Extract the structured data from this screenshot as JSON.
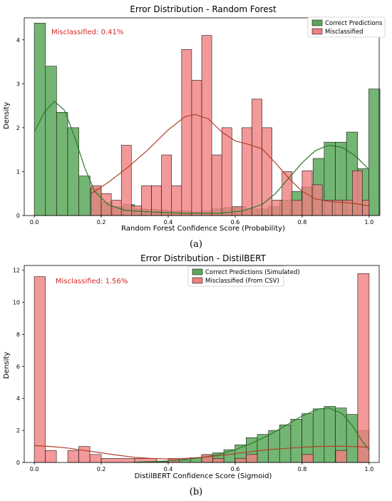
{
  "chart_data": [
    {
      "type": "histogram",
      "title": "Error Distribution - Random Forest",
      "xlabel": "Random Forest Confidence Score (Probability)",
      "ylabel": "Density",
      "xlim": [
        -0.03,
        1.03
      ],
      "ylim": [
        0,
        4.5
      ],
      "xticks": [
        "0.0",
        "0.2",
        "0.4",
        "0.6",
        "0.8",
        "1.0"
      ],
      "xtick_values": [
        0,
        0.2,
        0.4,
        0.6,
        0.8,
        1.0
      ],
      "yticks": [
        "0",
        "1",
        "2",
        "3",
        "4"
      ],
      "ytick_values": [
        0,
        1,
        2,
        3,
        4
      ],
      "legend_position": "top-right",
      "annotation": "Misclassified: 0.41%",
      "caption": "(a)",
      "series": [
        {
          "name": "Correct Predictions",
          "color": "#5aa85a",
          "edge": "#1a1a1a",
          "bin_width": 0.0333,
          "bins_start": 0.0,
          "values": [
            4.38,
            3.4,
            2.35,
            2.0,
            0.9,
            0.62,
            0.3,
            0.2,
            0.25,
            0.15,
            0.14,
            0.12,
            0.1,
            0.1,
            0.08,
            0.1,
            0.15,
            0.18,
            0.2,
            0.15,
            0.15,
            0.2,
            0.35,
            0.55,
            0.65,
            1.3,
            1.67,
            1.67,
            1.9,
            1.07,
            2.88
          ]
        },
        {
          "name": "Misclassified",
          "color": "#f08080",
          "edge": "#1a1a1a",
          "bars": [
            {
              "x0": 0.17,
              "x1": 0.2,
              "v": 0.68
            },
            {
              "x0": 0.2,
              "x1": 0.23,
              "v": 0.5
            },
            {
              "x0": 0.23,
              "x1": 0.26,
              "v": 0.35
            },
            {
              "x0": 0.26,
              "x1": 0.29,
              "v": 1.6
            },
            {
              "x0": 0.29,
              "x1": 0.32,
              "v": 0.22
            },
            {
              "x0": 0.32,
              "x1": 0.35,
              "v": 0.68
            },
            {
              "x0": 0.35,
              "x1": 0.38,
              "v": 0.68
            },
            {
              "x0": 0.38,
              "x1": 0.41,
              "v": 1.38
            },
            {
              "x0": 0.41,
              "x1": 0.44,
              "v": 0.68
            },
            {
              "x0": 0.44,
              "x1": 0.47,
              "v": 3.78
            },
            {
              "x0": 0.47,
              "x1": 0.5,
              "v": 3.08
            },
            {
              "x0": 0.5,
              "x1": 0.53,
              "v": 4.1
            },
            {
              "x0": 0.53,
              "x1": 0.56,
              "v": 1.38
            },
            {
              "x0": 0.56,
              "x1": 0.59,
              "v": 2.0
            },
            {
              "x0": 0.59,
              "x1": 0.62,
              "v": 0.2
            },
            {
              "x0": 0.62,
              "x1": 0.65,
              "v": 2.0
            },
            {
              "x0": 0.65,
              "x1": 0.68,
              "v": 2.65
            },
            {
              "x0": 0.68,
              "x1": 0.71,
              "v": 2.0
            },
            {
              "x0": 0.71,
              "x1": 0.74,
              "v": 0.35
            },
            {
              "x0": 0.74,
              "x1": 0.77,
              "v": 1.0
            },
            {
              "x0": 0.77,
              "x1": 0.8,
              "v": 0.35
            },
            {
              "x0": 0.8,
              "x1": 0.83,
              "v": 1.02
            },
            {
              "x0": 0.83,
              "x1": 0.86,
              "v": 0.7
            },
            {
              "x0": 0.86,
              "x1": 0.89,
              "v": 0.35
            },
            {
              "x0": 0.89,
              "x1": 0.92,
              "v": 0.35
            },
            {
              "x0": 0.92,
              "x1": 0.95,
              "v": 0.35
            },
            {
              "x0": 0.95,
              "x1": 0.98,
              "v": 1.02
            },
            {
              "x0": 0.98,
              "x1": 1.0,
              "v": 0.35
            }
          ]
        }
      ],
      "kde": [
        {
          "color": "#2a7a2a",
          "points": [
            [
              0.0,
              1.9
            ],
            [
              0.03,
              2.35
            ],
            [
              0.06,
              2.6
            ],
            [
              0.09,
              2.4
            ],
            [
              0.12,
              1.8
            ],
            [
              0.15,
              1.1
            ],
            [
              0.18,
              0.55
            ],
            [
              0.22,
              0.25
            ],
            [
              0.27,
              0.12
            ],
            [
              0.35,
              0.08
            ],
            [
              0.45,
              0.05
            ],
            [
              0.55,
              0.05
            ],
            [
              0.62,
              0.1
            ],
            [
              0.68,
              0.25
            ],
            [
              0.72,
              0.5
            ],
            [
              0.76,
              0.85
            ],
            [
              0.8,
              1.2
            ],
            [
              0.84,
              1.48
            ],
            [
              0.88,
              1.6
            ],
            [
              0.92,
              1.55
            ],
            [
              0.96,
              1.35
            ],
            [
              1.0,
              1.05
            ]
          ]
        },
        {
          "color": "#b0402a",
          "points": [
            [
              0.17,
              0.5
            ],
            [
              0.22,
              0.75
            ],
            [
              0.28,
              1.1
            ],
            [
              0.34,
              1.5
            ],
            [
              0.4,
              1.95
            ],
            [
              0.45,
              2.25
            ],
            [
              0.48,
              2.3
            ],
            [
              0.52,
              2.2
            ],
            [
              0.56,
              1.9
            ],
            [
              0.6,
              1.7
            ],
            [
              0.64,
              1.62
            ],
            [
              0.68,
              1.52
            ],
            [
              0.72,
              1.2
            ],
            [
              0.76,
              0.85
            ],
            [
              0.8,
              0.55
            ],
            [
              0.84,
              0.38
            ],
            [
              0.88,
              0.32
            ],
            [
              0.92,
              0.3
            ],
            [
              0.96,
              0.27
            ],
            [
              1.0,
              0.22
            ]
          ]
        }
      ]
    },
    {
      "type": "histogram",
      "title": "Error Distribution - DistilBERT",
      "xlabel": "DistilBERT Confidence Score (Sigmoid)",
      "ylabel": "Density",
      "xlim": [
        -0.03,
        1.03
      ],
      "ylim": [
        0,
        12.3
      ],
      "xticks": [
        "0.0",
        "0.2",
        "0.4",
        "0.6",
        "0.8",
        "1.0"
      ],
      "xtick_values": [
        0,
        0.2,
        0.4,
        0.6,
        0.8,
        1.0
      ],
      "yticks": [
        "0",
        "2",
        "4",
        "6",
        "8",
        "10",
        "12"
      ],
      "ytick_values": [
        0,
        2,
        4,
        6,
        8,
        10,
        12
      ],
      "legend_position": "top-center",
      "annotation": "Misclassified: 1.56%",
      "caption": "(b)",
      "series": [
        {
          "name": "Correct Predictions (Simulated)",
          "color": "#5aa85a",
          "edge": "#1a1a1a",
          "bin_width": 0.0333,
          "bins_start": 0.0,
          "values": [
            0,
            0,
            0,
            0,
            0,
            0,
            0,
            0,
            0,
            0,
            0.02,
            0.05,
            0.1,
            0.15,
            0.3,
            0.45,
            0.6,
            0.8,
            1.1,
            1.55,
            1.75,
            2.0,
            2.35,
            2.7,
            3.05,
            3.35,
            3.5,
            3.4,
            3.0,
            2.0
          ]
        },
        {
          "name": "Misclassified (From CSV)",
          "color": "#f08080",
          "edge": "#1a1a1a",
          "bars": [
            {
              "x0": 0.0,
              "x1": 0.033,
              "v": 11.6
            },
            {
              "x0": 0.033,
              "x1": 0.066,
              "v": 0.75
            },
            {
              "x0": 0.1,
              "x1": 0.133,
              "v": 0.75
            },
            {
              "x0": 0.133,
              "x1": 0.166,
              "v": 1.0
            },
            {
              "x0": 0.166,
              "x1": 0.2,
              "v": 0.5
            },
            {
              "x0": 0.2,
              "x1": 0.3,
              "v": 0.25
            },
            {
              "x0": 0.3,
              "x1": 0.366,
              "v": 0.25
            },
            {
              "x0": 0.4,
              "x1": 0.433,
              "v": 0.25
            },
            {
              "x0": 0.5,
              "x1": 0.533,
              "v": 0.5
            },
            {
              "x0": 0.533,
              "x1": 0.566,
              "v": 0.25
            },
            {
              "x0": 0.6,
              "x1": 0.633,
              "v": 0.25
            },
            {
              "x0": 0.633,
              "x1": 0.666,
              "v": 0.5
            },
            {
              "x0": 0.8,
              "x1": 0.833,
              "v": 0.5
            },
            {
              "x0": 0.9,
              "x1": 0.933,
              "v": 0.75
            },
            {
              "x0": 0.966,
              "x1": 1.0,
              "v": 11.8
            }
          ]
        }
      ],
      "kde": [
        {
          "color": "#2a7a2a",
          "points": [
            [
              0.3,
              0.02
            ],
            [
              0.4,
              0.1
            ],
            [
              0.5,
              0.3
            ],
            [
              0.55,
              0.5
            ],
            [
              0.6,
              0.8
            ],
            [
              0.65,
              1.2
            ],
            [
              0.7,
              1.7
            ],
            [
              0.75,
              2.3
            ],
            [
              0.8,
              2.9
            ],
            [
              0.85,
              3.35
            ],
            [
              0.88,
              3.4
            ],
            [
              0.92,
              3.05
            ],
            [
              0.95,
              2.3
            ],
            [
              0.98,
              1.3
            ],
            [
              1.0,
              0.8
            ]
          ]
        },
        {
          "color": "#b0402a",
          "points": [
            [
              0.0,
              1.05
            ],
            [
              0.05,
              1.0
            ],
            [
              0.1,
              0.9
            ],
            [
              0.15,
              0.75
            ],
            [
              0.2,
              0.6
            ],
            [
              0.25,
              0.45
            ],
            [
              0.3,
              0.32
            ],
            [
              0.35,
              0.25
            ],
            [
              0.4,
              0.22
            ],
            [
              0.45,
              0.25
            ],
            [
              0.5,
              0.32
            ],
            [
              0.55,
              0.42
            ],
            [
              0.6,
              0.55
            ],
            [
              0.65,
              0.68
            ],
            [
              0.7,
              0.8
            ],
            [
              0.75,
              0.88
            ],
            [
              0.8,
              0.95
            ],
            [
              0.85,
              1.0
            ],
            [
              0.9,
              1.02
            ],
            [
              0.95,
              1.0
            ],
            [
              1.0,
              0.95
            ]
          ]
        }
      ]
    }
  ]
}
